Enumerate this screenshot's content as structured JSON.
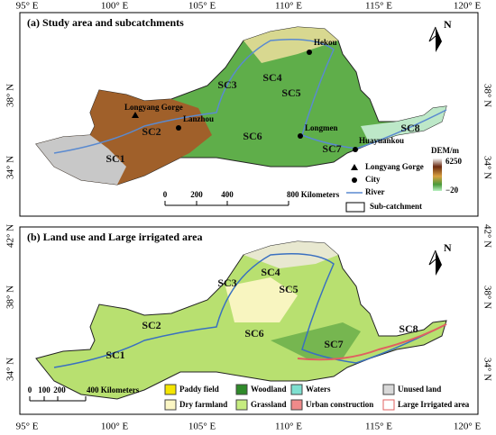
{
  "axes": {
    "top": [
      "95° E",
      "100° E",
      "105° E",
      "110° E",
      "115° E",
      "120° E"
    ],
    "bottom": [
      "95° E",
      "100° E",
      "105° E",
      "110° E",
      "115° E",
      "120° E"
    ],
    "left_a": [
      "38° N",
      "34° N"
    ],
    "right_a": [
      "38° N",
      "34° N"
    ],
    "left_b": [
      "42° N",
      "38° N",
      "34° N"
    ],
    "right_b": [
      "42° N",
      "38° N",
      "34° N"
    ]
  },
  "panel_a": {
    "title": "(a) Study area and subcatchments",
    "north": "N",
    "subcatchments": [
      "SC1",
      "SC2",
      "SC3",
      "SC4",
      "SC5",
      "SC6",
      "SC7",
      "SC8"
    ],
    "places": [
      "Hekou",
      "Longyang Gorge",
      "Lanzhou",
      "Longmen",
      "Huayuankou"
    ],
    "legend": {
      "gauge": "Longyang Gorge",
      "city": "City",
      "river": "River",
      "subcatchment": "Sub-catchment",
      "dem_title": "DEM/m",
      "dem_high": "6250",
      "dem_low": "−20"
    },
    "scale": {
      "ticks": [
        "0",
        "200",
        "400"
      ],
      "end": "800 Kilometers"
    }
  },
  "panel_b": {
    "title": "(b) Land use and Large irrigated area",
    "north": "N",
    "subcatchments": [
      "SC1",
      "SC2",
      "SC3",
      "SC4",
      "SC5",
      "SC6",
      "SC7",
      "SC8"
    ],
    "legend": [
      "Paddy field",
      "Dry farmland",
      "Woodland",
      "Grassland",
      "Waters",
      "Urban construction",
      "Unused land",
      "Large Irrigated area"
    ],
    "scale": {
      "ticks": [
        "0",
        "100",
        "200"
      ],
      "end": "400 Kilometers"
    }
  }
}
